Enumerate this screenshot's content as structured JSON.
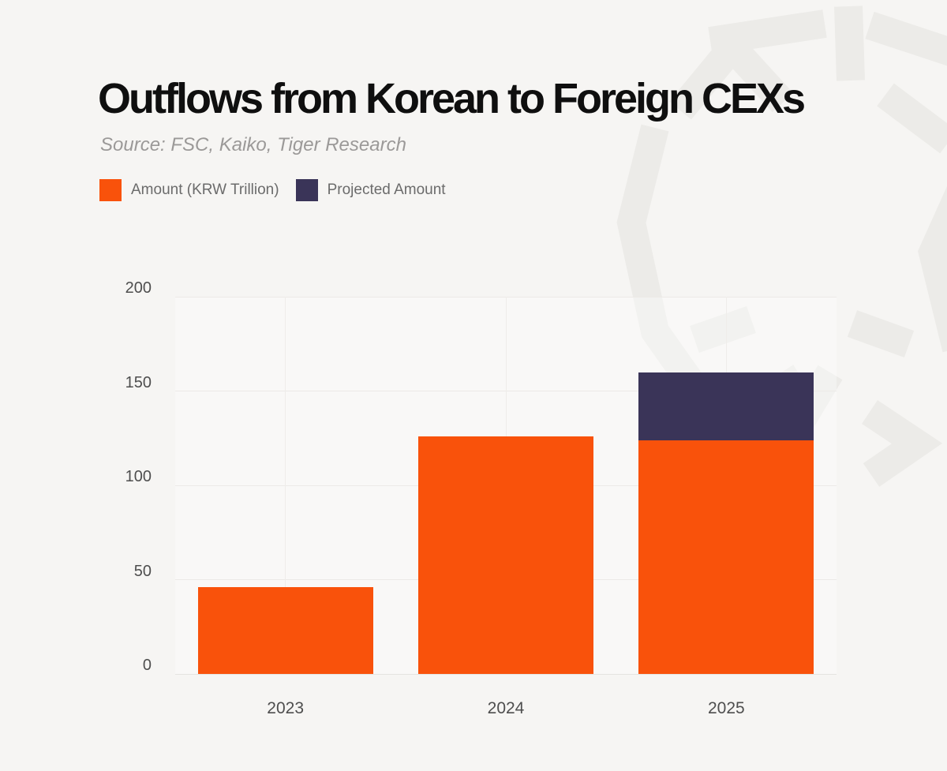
{
  "header": {
    "title": "Outflows from Korean to Foreign CEXs",
    "source": "Source: FSC, Kaiko, Tiger Research"
  },
  "colors": {
    "background": "#F6F5F3",
    "watermark": "#ECEBE8",
    "amount_orange": "#F9520B",
    "projected_navy": "#3A3458",
    "title_text": "#0F0F0F",
    "source_text": "#9B9998",
    "legend_text": "#6B6B6B",
    "axis_text": "#4E4E4E",
    "gridline": "#ECEAE7"
  },
  "chart_data": {
    "type": "bar",
    "stacked": true,
    "title": "Outflows from Korean to Foreign CEXs",
    "source": "Source: FSC, Kaiko, Tiger Research",
    "categories": [
      "2023",
      "2024",
      "2025"
    ],
    "series": [
      {
        "name": "Amount (KRW Trillion)",
        "color": "#F9520B",
        "values": [
          46,
          126,
          124
        ]
      },
      {
        "name": "Projected Amount",
        "color": "#3A3458",
        "values": [
          0,
          0,
          36
        ]
      }
    ],
    "xlabel": "",
    "ylabel": "",
    "ylim": [
      0,
      200
    ],
    "yticks": [
      0,
      50,
      100,
      150,
      200
    ],
    "grid": true,
    "legend_position": "top-left"
  }
}
